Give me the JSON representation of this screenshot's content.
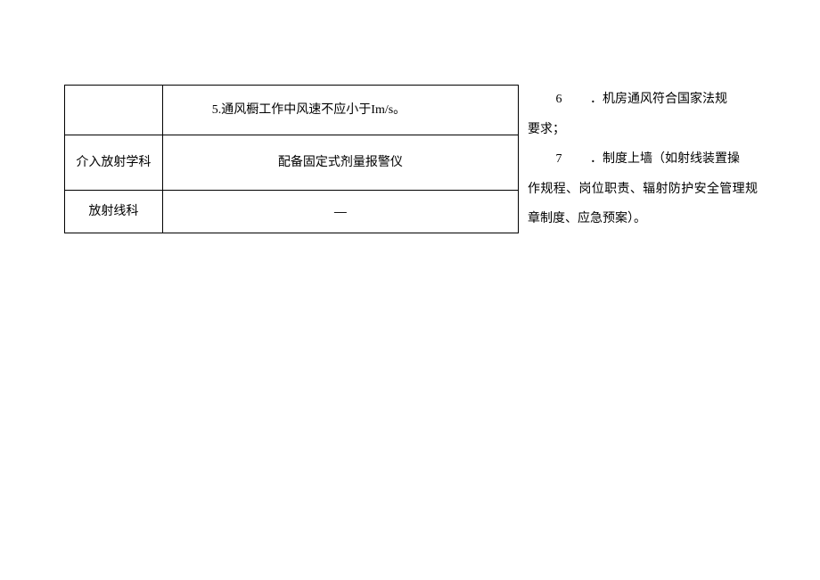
{
  "table": {
    "rows": [
      {
        "left": "",
        "right": "5.通风橱工作中风速不应小于Im/s。"
      },
      {
        "left": "介入放射学科",
        "right": "配备固定式剂量报警仪"
      },
      {
        "left": "放射线科",
        "right": "—"
      }
    ]
  },
  "sideText": {
    "item6_num": "6",
    "item6_text": "．机房通风符合国家法规",
    "item6_cont": "要求；",
    "item7_num": "7",
    "item7_text": "．制度上墙（如射线装置操",
    "item7_cont": "作规程、岗位职责、辐射防护安全管理规章制度、应急预案）。"
  }
}
